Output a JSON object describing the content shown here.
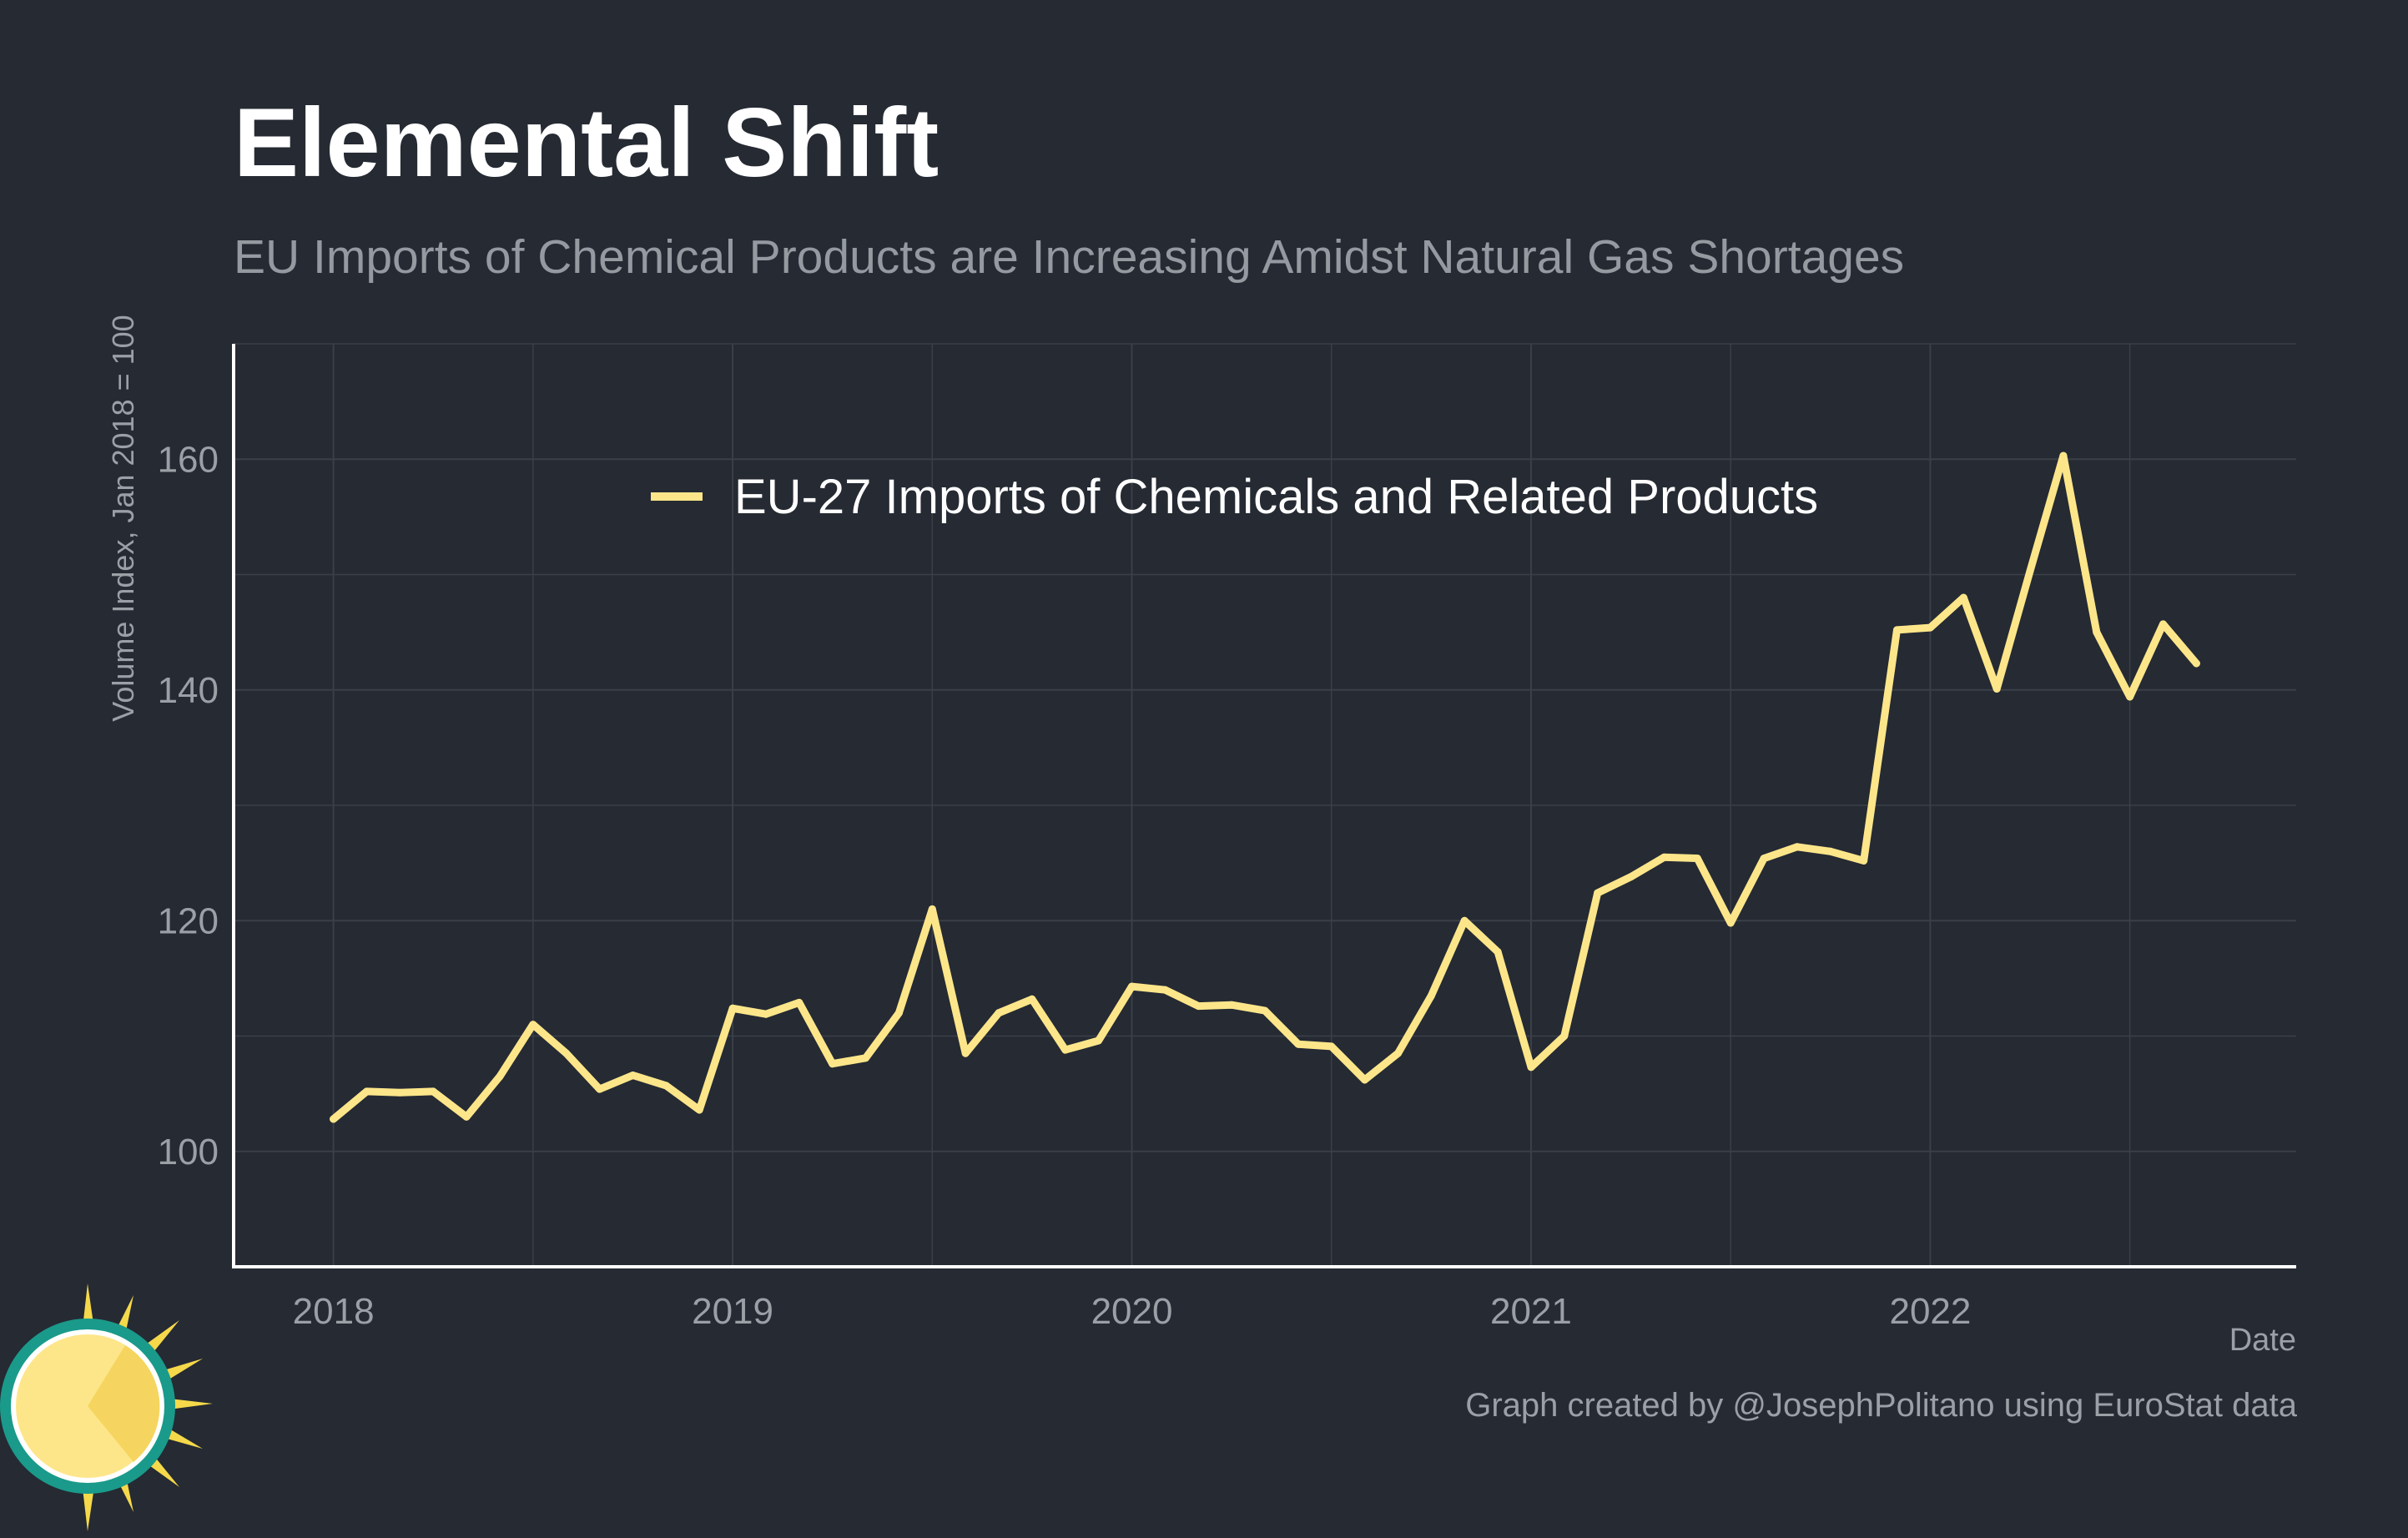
{
  "header": {
    "title": "Elemental Shift",
    "subtitle": "EU Imports of Chemical Products are Increasing Amidst Natural Gas Shortages"
  },
  "caption": "Graph created by @JosephPolitano using EuroStat data",
  "colors": {
    "background": "#252a33",
    "line": "#fde68a",
    "grid": "#3a3f48",
    "axis_text": "#9aa0a6"
  },
  "logo": {
    "icon": "sun-logo-icon"
  },
  "chart_data": {
    "type": "line",
    "title": "Elemental Shift",
    "subtitle": "EU Imports of Chemical Products are Increasing Amidst Natural Gas Shortages",
    "xlabel": "Date",
    "ylabel": "Volume Index, Jan 2018 = 100",
    "x_ticks": [
      "2018",
      "2019",
      "2020",
      "2021",
      "2022"
    ],
    "y_ticks": [
      100,
      120,
      140,
      160
    ],
    "ylim": [
      90,
      170
    ],
    "xlim": [
      "2017-10",
      "2022-12"
    ],
    "grid": true,
    "legend_position": "top-center",
    "x": [
      "2018-01",
      "2018-02",
      "2018-03",
      "2018-04",
      "2018-05",
      "2018-06",
      "2018-07",
      "2018-08",
      "2018-09",
      "2018-10",
      "2018-11",
      "2018-12",
      "2019-01",
      "2019-02",
      "2019-03",
      "2019-04",
      "2019-05",
      "2019-06",
      "2019-07",
      "2019-08",
      "2019-09",
      "2019-10",
      "2019-11",
      "2019-12",
      "2020-01",
      "2020-02",
      "2020-03",
      "2020-04",
      "2020-05",
      "2020-06",
      "2020-07",
      "2020-08",
      "2020-09",
      "2020-10",
      "2020-11",
      "2020-12",
      "2021-01",
      "2021-02",
      "2021-03",
      "2021-04",
      "2021-05",
      "2021-06",
      "2021-07",
      "2021-08",
      "2021-09",
      "2021-10",
      "2021-11",
      "2021-12",
      "2022-01",
      "2022-02",
      "2022-03",
      "2022-04",
      "2022-05",
      "2022-06",
      "2022-07",
      "2022-08",
      "2022-09"
    ],
    "series": [
      {
        "name": "EU-27 Imports of Chemicals and Related Products",
        "color": "#fde68a",
        "values": [
          102.8,
          105.2,
          105.1,
          105.2,
          103.0,
          106.5,
          111.0,
          108.5,
          105.4,
          106.6,
          105.7,
          103.6,
          112.4,
          111.9,
          112.9,
          107.6,
          108.1,
          112.0,
          121.0,
          108.5,
          112.0,
          113.2,
          108.8,
          109.6,
          114.3,
          114.0,
          112.6,
          112.7,
          112.2,
          109.3,
          109.1,
          106.2,
          108.5,
          113.5,
          120.0,
          117.3,
          107.3,
          110.0,
          122.4,
          123.8,
          125.5,
          125.4,
          119.8,
          125.4,
          126.4,
          126.0,
          125.2,
          145.2,
          145.4,
          148.0,
          140.1,
          150.3,
          160.3,
          145.0,
          139.4,
          145.7,
          142.3
        ]
      }
    ]
  }
}
